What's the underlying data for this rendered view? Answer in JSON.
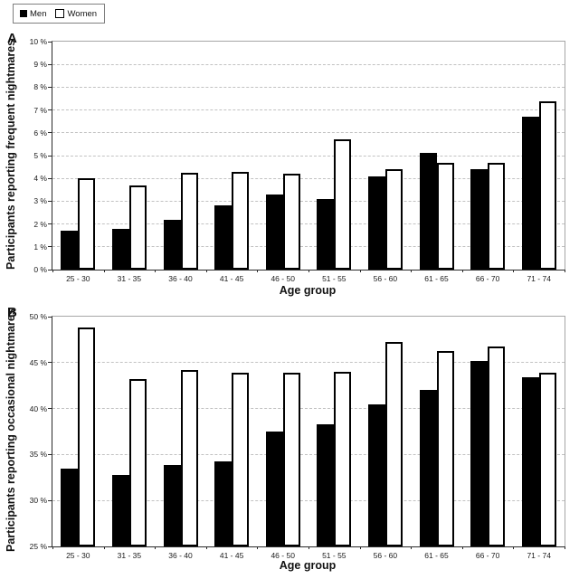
{
  "legend": {
    "men_label": "Men",
    "women_label": "Women"
  },
  "colors": {
    "bar_men": "#000000",
    "bar_women": "#ffffff",
    "bar_outline": "#000000",
    "gridline": "#c2c2c2",
    "axis": "#2a2a2a",
    "plot_border": "#a6a6a6",
    "background": "#ffffff"
  },
  "chart_data": [
    {
      "type": "bar",
      "panel_label": "A",
      "ylabel": "Participants reporting frequent nightmares",
      "xlabel": "Age group",
      "ylim": [
        0,
        10
      ],
      "ytick_step": 1,
      "ytick_suffix": " %",
      "grid": "horizontal-dashed",
      "legend_position": "top-left-outside-figure",
      "categories": [
        "25 - 30",
        "31 - 35",
        "36 - 40",
        "41 - 45",
        "46 - 50",
        "51 - 55",
        "56 - 60",
        "61 - 65",
        "66 - 70",
        "71 - 74"
      ],
      "series": [
        {
          "name": "Men",
          "color": "#000000",
          "values": [
            1.7,
            1.8,
            2.2,
            2.8,
            3.3,
            3.1,
            4.1,
            5.1,
            4.4,
            6.7
          ]
        },
        {
          "name": "Women",
          "color": "#ffffff",
          "values": [
            4.0,
            3.7,
            4.25,
            4.3,
            4.2,
            5.7,
            4.4,
            4.7,
            4.7,
            7.4
          ]
        }
      ]
    },
    {
      "type": "bar",
      "panel_label": "B",
      "ylabel": "Participants reporting occasional nightmares",
      "xlabel": "Age group",
      "ylim": [
        25,
        50
      ],
      "ytick_step": 5,
      "ytick_suffix": " %",
      "grid": "horizontal-dashed",
      "categories": [
        "25 - 30",
        "31 - 35",
        "36 - 40",
        "41 - 45",
        "46 - 50",
        "51 - 55",
        "56 - 60",
        "61 - 65",
        "66 - 70",
        "71 - 74"
      ],
      "series": [
        {
          "name": "Men",
          "color": "#000000",
          "values": [
            33.5,
            32.8,
            33.9,
            34.3,
            37.5,
            38.3,
            40.5,
            42.0,
            45.2,
            43.4
          ]
        },
        {
          "name": "Women",
          "color": "#ffffff",
          "values": [
            48.8,
            43.2,
            44.2,
            43.9,
            43.9,
            44.0,
            47.2,
            46.3,
            46.8,
            43.9
          ]
        }
      ]
    }
  ]
}
